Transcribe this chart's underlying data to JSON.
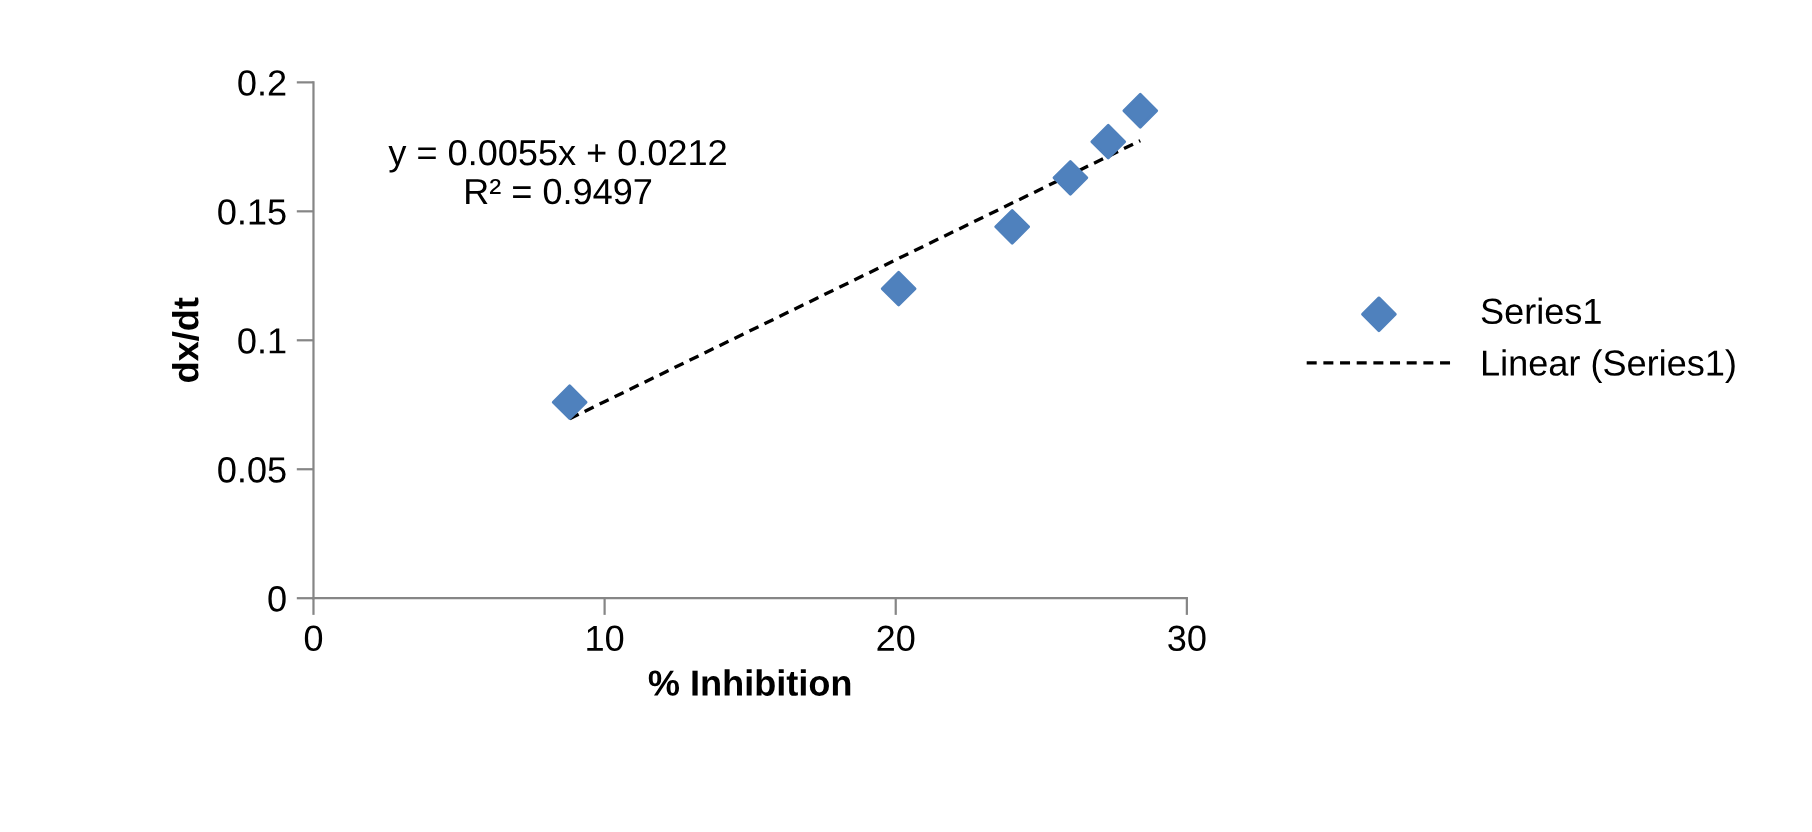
{
  "chart_data": {
    "type": "scatter",
    "xlabel": "% Inhibition",
    "ylabel": "dx/dt",
    "x": [
      8.8,
      20.1,
      24.0,
      26.0,
      27.3,
      28.4
    ],
    "series": [
      {
        "name": "Series1",
        "color": "#4f81bd",
        "marker": "diamond",
        "values": [
          0.076,
          0.12,
          0.144,
          0.163,
          0.177,
          0.189
        ]
      },
      {
        "name": "Linear (Series1)",
        "type": "line",
        "color": "#000000",
        "line_style": "dashed",
        "x": [
          8.8,
          28.4
        ],
        "values": [
          0.0696,
          0.1774
        ]
      }
    ],
    "annotations": [
      "y = 0.0055x + 0.0212\nR² = 0.9497"
    ],
    "xlim": [
      0,
      30
    ],
    "xticks": [
      0,
      10,
      20,
      30
    ],
    "ylim": [
      0,
      0.2
    ],
    "yticks": [
      0,
      0.05,
      0.1,
      0.15,
      0.2
    ],
    "grid": false,
    "legend": "right"
  }
}
